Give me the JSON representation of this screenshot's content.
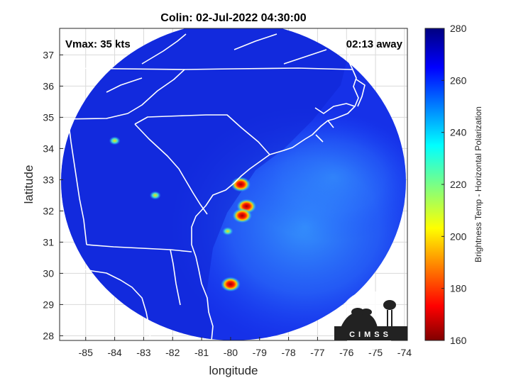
{
  "chart_data": {
    "type": "heatmap",
    "title": "Colin: 02-Jul-2022 04:30:00",
    "xlabel": "longitude",
    "ylabel": "latitude",
    "xlim": [
      -85.9,
      -73.9
    ],
    "ylim": [
      27.85,
      37.85
    ],
    "xticks": [
      -85,
      -84,
      -83,
      -82,
      -81,
      -80,
      -79,
      -78,
      -77,
      -76,
      -75,
      -74
    ],
    "yticks": [
      28,
      29,
      30,
      31,
      32,
      33,
      34,
      35,
      36,
      37
    ],
    "grid": true,
    "annotations": {
      "left": "Vmax: 35 kts",
      "right": "02:13 away"
    },
    "colorbar": {
      "label": "Brightness Temp - Horizontal Polarization",
      "min": 160,
      "max": 280,
      "ticks": [
        160,
        180,
        200,
        220,
        240,
        260,
        280
      ],
      "colormap": "jet"
    },
    "swath": {
      "center_lon": -79.9,
      "center_lat": 32.95,
      "radius_lat_deg": 5.1,
      "radius_lon_deg": 5.95
    },
    "features": [
      {
        "name": "cold core north",
        "lon": -79.65,
        "lat": 32.85,
        "value": 168
      },
      {
        "name": "cold core main",
        "lon": -79.45,
        "lat": 32.15,
        "value": 165
      },
      {
        "name": "cold core south",
        "lon": -79.6,
        "lat": 31.85,
        "value": 175
      },
      {
        "name": "convective cell",
        "lon": -80.0,
        "lat": 29.65,
        "value": 185
      },
      {
        "name": "convective cell",
        "lon": -80.1,
        "lat": 31.35,
        "value": 215
      },
      {
        "name": "inland cell",
        "lon": -84.0,
        "lat": 34.25,
        "value": 225
      },
      {
        "name": "inland cell",
        "lon": -82.6,
        "lat": 32.5,
        "value": 235
      }
    ],
    "ocean_warm_region_value": 245,
    "land_background_value": 268
  },
  "logo": {
    "text": "CIMSS"
  }
}
